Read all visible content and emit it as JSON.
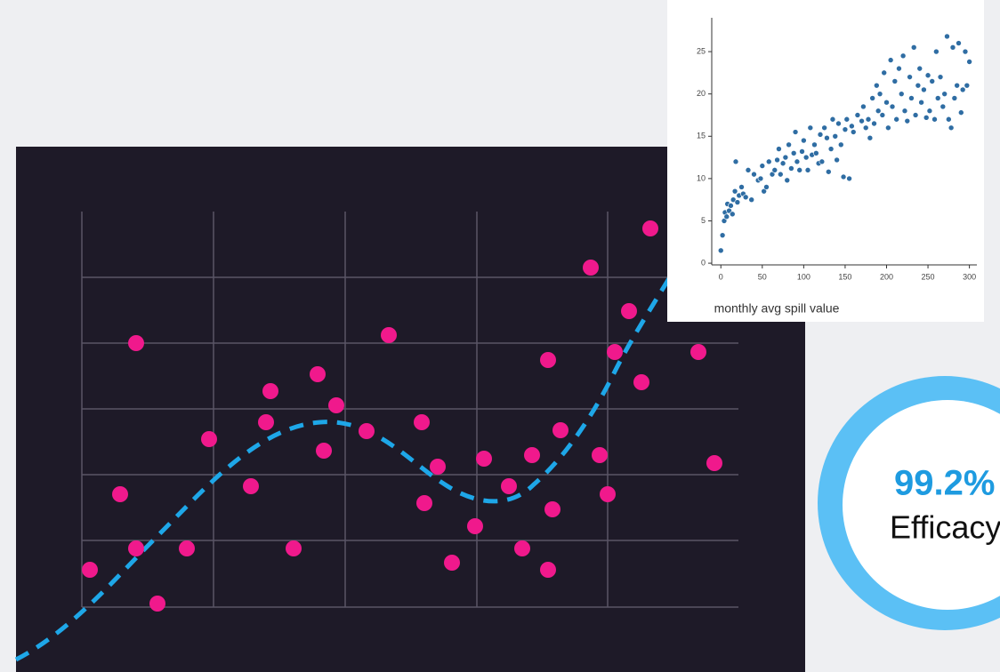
{
  "chart_data": {
    "type": "scatter",
    "xlabel": "monthly avg spill value",
    "color": "#2f6da3",
    "xlim": [
      -11,
      309
    ],
    "ylim": [
      -0.2,
      29
    ],
    "xticks": [
      0,
      50,
      100,
      150,
      200,
      250,
      300
    ],
    "yticks": [
      0,
      5,
      10,
      15,
      20,
      25
    ],
    "x": [
      0,
      2,
      4,
      5,
      7,
      8,
      10,
      12,
      14,
      15,
      17,
      18,
      20,
      22,
      25,
      27,
      30,
      33,
      37,
      40,
      45,
      48,
      50,
      52,
      55,
      58,
      62,
      65,
      68,
      70,
      72,
      75,
      78,
      80,
      82,
      85,
      88,
      90,
      92,
      95,
      98,
      100,
      103,
      105,
      108,
      110,
      113,
      115,
      118,
      120,
      122,
      125,
      128,
      130,
      133,
      135,
      138,
      140,
      142,
      145,
      148,
      150,
      152,
      155,
      158,
      160,
      165,
      170,
      172,
      175,
      178,
      180,
      183,
      185,
      188,
      190,
      192,
      195,
      197,
      200,
      202,
      205,
      207,
      210,
      212,
      215,
      218,
      220,
      222,
      225,
      228,
      230,
      233,
      235,
      238,
      240,
      242,
      245,
      248,
      250,
      252,
      255,
      258,
      260,
      262,
      265,
      268,
      270,
      273,
      275,
      278,
      280,
      282,
      285,
      287,
      290,
      292,
      295,
      297,
      300
    ],
    "values": [
      1.5,
      3.3,
      5,
      6,
      5.5,
      7,
      6.2,
      6.8,
      5.8,
      7.5,
      8.5,
      12,
      7.2,
      8,
      9,
      8.2,
      7.8,
      11,
      7.5,
      10.5,
      9.8,
      10,
      11.5,
      8.5,
      9,
      12,
      10.5,
      11,
      12.2,
      13.5,
      10.5,
      11.8,
      12.5,
      9.8,
      14,
      11.2,
      13,
      15.5,
      12,
      11,
      13.2,
      14.5,
      12.5,
      11,
      16,
      12.8,
      14,
      13,
      11.8,
      15.2,
      12,
      16,
      14.8,
      10.8,
      13.5,
      17,
      15,
      12.2,
      16.5,
      14,
      10.2,
      15.8,
      17,
      10,
      16.2,
      15.5,
      17.5,
      16.8,
      18.5,
      16,
      17,
      14.8,
      19.5,
      16.5,
      21,
      18,
      20,
      17.5,
      22.5,
      19,
      16,
      24,
      18.5,
      21.5,
      17,
      23,
      20,
      24.5,
      18,
      16.8,
      22,
      19.5,
      25.5,
      17.5,
      21,
      23,
      19,
      20.5,
      17.2,
      22.2,
      18,
      21.5,
      17,
      25,
      19.5,
      22,
      18.5,
      20,
      26.8,
      17,
      16,
      25.5,
      19.5,
      21,
      26,
      17.8,
      20.5,
      25,
      21,
      23.8
    ]
  },
  "badge": {
    "value": "99.2%",
    "label": "Efficacy"
  }
}
